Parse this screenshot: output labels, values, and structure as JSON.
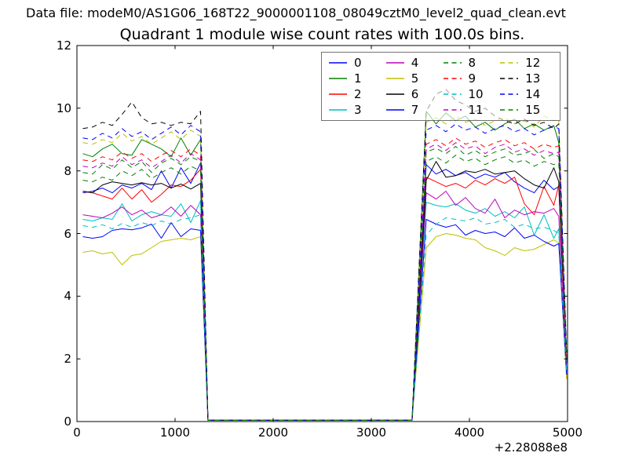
{
  "header": {
    "datafile": "Data file: modeM0/AS1G06_168T22_9000001108_08049cztM0_level2_quad_clean.evt"
  },
  "chart_data": {
    "type": "line",
    "title": "Quadrant 1 module wise count rates with 100.0s bins.",
    "xlabel": "",
    "ylabel": "",
    "xlim": [
      0,
      5000
    ],
    "ylim": [
      0,
      12
    ],
    "xticks": [
      0,
      1000,
      2000,
      3000,
      4000,
      5000
    ],
    "yticks": [
      0,
      2,
      4,
      6,
      8,
      10,
      12
    ],
    "x_offset_label": "+2.28088e8",
    "grid": false,
    "legend_position": "upper center",
    "frame_color": "#000000",
    "background_color": "#ffffff",
    "x_segment_a": [
      60,
      160,
      260,
      360,
      460,
      560,
      660,
      760,
      860,
      960,
      1060,
      1160,
      1260
    ],
    "x_segment_b": [
      3560,
      3660,
      3760,
      3860,
      3960,
      4060,
      4160,
      4260,
      4360,
      4460,
      4560,
      4660,
      4760,
      4860,
      4910
    ],
    "fall_x": 1335,
    "rise_x": 3415,
    "end_x": 4990,
    "gap_zero_level": 0.04,
    "series": [
      {
        "name": "0",
        "color": "#0000ff",
        "style": "solid",
        "values_a": [
          7.3,
          7.35,
          7.45,
          7.3,
          7.55,
          7.45,
          7.6,
          7.4,
          8.0,
          7.45,
          8.1,
          7.6,
          8.25
        ],
        "values_b": [
          8.2,
          7.9,
          8.05,
          7.85,
          7.95,
          7.75,
          7.9,
          7.8,
          7.95,
          7.65,
          7.45,
          7.3,
          7.7,
          7.4,
          7.5
        ],
        "end_value": 1.9
      },
      {
        "name": "1",
        "color": "#008000",
        "style": "solid",
        "values_a": [
          8.55,
          8.45,
          8.7,
          8.85,
          8.55,
          8.5,
          9.0,
          8.85,
          8.7,
          8.45,
          9.05,
          8.5,
          9.0
        ],
        "values_b": [
          9.9,
          9.5,
          9.85,
          9.6,
          9.75,
          9.4,
          9.55,
          9.3,
          9.5,
          9.65,
          9.35,
          9.5,
          9.3,
          9.45,
          8.9
        ],
        "end_value": 2.1
      },
      {
        "name": "2",
        "color": "#ff0000",
        "style": "solid",
        "values_a": [
          7.35,
          7.3,
          7.2,
          7.1,
          7.45,
          7.1,
          7.4,
          7.0,
          7.25,
          7.55,
          7.5,
          7.7,
          8.05
        ],
        "values_b": [
          7.8,
          7.65,
          7.5,
          7.6,
          7.45,
          7.7,
          7.55,
          7.75,
          7.6,
          7.8,
          6.95,
          6.6,
          7.5,
          6.9,
          7.55
        ],
        "end_value": 1.85
      },
      {
        "name": "3",
        "color": "#00bfbf",
        "style": "solid",
        "values_a": [
          6.45,
          6.4,
          6.5,
          6.45,
          6.95,
          6.4,
          6.6,
          6.7,
          6.6,
          6.55,
          6.95,
          6.35,
          7.05
        ],
        "values_b": [
          7.0,
          6.9,
          6.85,
          6.95,
          6.75,
          6.65,
          6.8,
          6.55,
          6.7,
          6.5,
          6.85,
          5.95,
          6.6,
          5.85,
          6.15
        ],
        "end_value": 1.7
      },
      {
        "name": "4",
        "color": "#bf00bf",
        "style": "solid",
        "values_a": [
          6.6,
          6.55,
          6.5,
          6.65,
          6.85,
          6.6,
          6.75,
          6.5,
          6.6,
          6.85,
          6.55,
          6.9,
          6.6
        ],
        "values_b": [
          7.3,
          7.1,
          7.35,
          6.9,
          7.15,
          6.8,
          6.65,
          7.1,
          6.5,
          6.75,
          6.6,
          6.7,
          6.65,
          6.8,
          6.55
        ],
        "end_value": 1.6
      },
      {
        "name": "5",
        "color": "#bfbf00",
        "style": "solid",
        "values_a": [
          5.4,
          5.45,
          5.35,
          5.4,
          5.0,
          5.3,
          5.35,
          5.55,
          5.75,
          5.8,
          5.85,
          5.8,
          5.9
        ],
        "values_b": [
          5.55,
          5.9,
          6.0,
          5.95,
          5.85,
          5.8,
          5.55,
          5.45,
          5.3,
          5.55,
          5.45,
          5.5,
          5.65,
          5.8,
          5.7
        ],
        "end_value": 1.35
      },
      {
        "name": "6",
        "color": "#000000",
        "style": "solid",
        "values_a": [
          7.35,
          7.3,
          7.55,
          7.65,
          7.6,
          7.55,
          7.62,
          7.55,
          7.6,
          7.45,
          7.58,
          7.42,
          7.6
        ],
        "values_b": [
          7.7,
          8.3,
          7.8,
          7.85,
          8.0,
          7.95,
          8.05,
          7.9,
          7.95,
          8.0,
          7.75,
          7.55,
          7.45,
          8.1,
          7.65
        ],
        "end_value": 2.0
      },
      {
        "name": "7",
        "color": "#0000ff",
        "style": "solid",
        "values_a": [
          5.9,
          5.85,
          5.9,
          6.1,
          6.15,
          6.12,
          6.18,
          6.3,
          5.85,
          6.35,
          5.9,
          6.15,
          6.1
        ],
        "values_b": [
          6.45,
          6.3,
          6.2,
          6.28,
          5.95,
          6.1,
          6.0,
          6.05,
          5.9,
          6.18,
          5.85,
          5.95,
          5.75,
          5.6,
          5.68
        ],
        "end_value": 1.5
      },
      {
        "name": "8",
        "color": "#008000",
        "style": "dashed",
        "values_a": [
          7.95,
          7.9,
          8.2,
          8.05,
          8.35,
          8.1,
          8.3,
          7.95,
          8.25,
          8.4,
          8.2,
          8.45,
          8.3
        ],
        "values_b": [
          8.6,
          8.72,
          8.55,
          8.78,
          8.5,
          8.65,
          8.45,
          8.6,
          8.7,
          8.5,
          8.55,
          8.68,
          8.4,
          8.55,
          8.45
        ],
        "end_value": 2.0
      },
      {
        "name": "9",
        "color": "#ff0000",
        "style": "dashed",
        "values_a": [
          8.35,
          8.3,
          8.45,
          8.35,
          8.6,
          8.4,
          8.55,
          8.3,
          8.5,
          8.65,
          8.45,
          8.7,
          8.5
        ],
        "values_b": [
          8.85,
          9.0,
          8.8,
          9.05,
          8.85,
          8.95,
          8.75,
          8.9,
          9.0,
          8.8,
          8.9,
          8.7,
          8.85,
          8.75,
          8.8
        ],
        "end_value": 2.05
      },
      {
        "name": "10",
        "color": "#00bfbf",
        "style": "dashed",
        "values_a": [
          6.25,
          6.2,
          6.28,
          6.15,
          6.32,
          6.2,
          6.35,
          6.25,
          6.4,
          6.3,
          6.45,
          6.5,
          6.6
        ],
        "values_b": [
          5.95,
          6.3,
          6.5,
          6.45,
          6.4,
          6.5,
          6.3,
          6.35,
          6.45,
          6.2,
          6.3,
          6.15,
          6.2,
          6.1,
          6.0
        ],
        "end_value": 1.55
      },
      {
        "name": "11",
        "color": "#bf00bf",
        "style": "dashed",
        "values_a": [
          8.15,
          8.1,
          8.25,
          8.15,
          8.45,
          8.2,
          8.35,
          8.1,
          8.3,
          8.5,
          8.25,
          8.55,
          8.35
        ],
        "values_b": [
          8.7,
          8.85,
          8.65,
          8.9,
          8.7,
          8.8,
          8.55,
          8.75,
          8.85,
          8.6,
          8.7,
          8.5,
          8.65,
          8.55,
          8.6
        ],
        "end_value": 2.0
      },
      {
        "name": "12",
        "color": "#bfbf00",
        "style": "dashed",
        "values_a": [
          8.9,
          8.85,
          9.0,
          8.9,
          9.2,
          8.95,
          9.1,
          8.85,
          9.05,
          9.25,
          9.0,
          9.3,
          9.1
        ],
        "values_b": [
          9.55,
          9.7,
          9.5,
          9.75,
          9.55,
          9.65,
          9.45,
          9.6,
          9.7,
          9.5,
          9.6,
          9.4,
          9.75,
          9.6,
          9.65
        ],
        "end_value": 2.15
      },
      {
        "name": "13",
        "color": "#000000",
        "style": "dashed",
        "values_a": [
          9.35,
          9.4,
          9.55,
          9.45,
          9.8,
          10.2,
          9.7,
          9.5,
          9.55,
          9.45,
          9.55,
          9.5,
          9.9
        ],
        "values_b": [
          9.9,
          10.45,
          10.6,
          10.25,
          10.1,
          9.9,
          10.0,
          9.75,
          9.6,
          9.5,
          9.65,
          9.45,
          9.55,
          9.35,
          9.5
        ],
        "end_value": 2.2
      },
      {
        "name": "14",
        "color": "#0000ff",
        "style": "dashed",
        "values_a": [
          9.05,
          9.0,
          9.2,
          9.05,
          9.35,
          9.1,
          9.25,
          9.0,
          9.2,
          9.4,
          9.15,
          9.45,
          9.25
        ],
        "values_b": [
          9.3,
          9.45,
          9.25,
          9.5,
          9.3,
          9.4,
          9.2,
          9.35,
          9.45,
          9.25,
          9.35,
          9.15,
          9.3,
          9.42,
          9.35
        ],
        "end_value": 2.1
      },
      {
        "name": "15",
        "color": "#008000",
        "style": "dashed",
        "values_a": [
          7.7,
          7.65,
          7.8,
          7.7,
          8.0,
          7.85,
          8.05,
          7.75,
          7.95,
          8.1,
          7.9,
          8.15,
          8.0
        ],
        "values_b": [
          8.3,
          8.45,
          8.25,
          8.5,
          8.3,
          8.4,
          8.2,
          8.35,
          8.45,
          8.25,
          8.35,
          8.15,
          8.3,
          8.2,
          8.25
        ],
        "end_value": 1.95
      }
    ]
  }
}
